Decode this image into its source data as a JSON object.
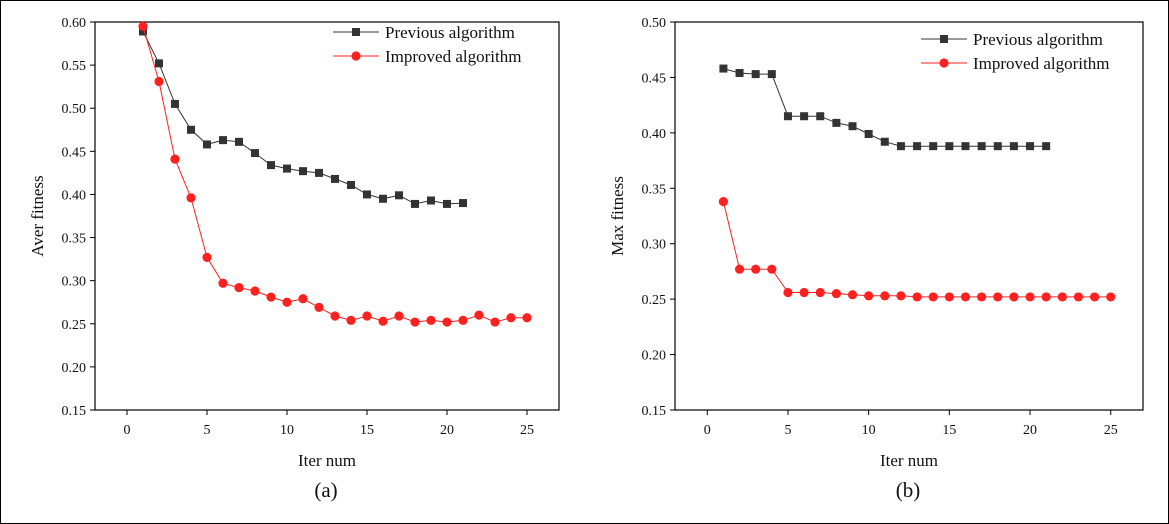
{
  "panels": [
    {
      "caption": "(a)",
      "chart_data": {
        "type": "line",
        "xlabel": "Iter num",
        "ylabel": "Aver fitness",
        "xlim": [
          -2,
          27
        ],
        "ylim": [
          0.15,
          0.6
        ],
        "xticks": [
          "0",
          "5",
          "10",
          "15",
          "20",
          "25"
        ],
        "xtick_values": [
          0,
          5,
          10,
          15,
          20,
          25
        ],
        "yticks": [
          "0.15",
          "0.20",
          "0.25",
          "0.30",
          "0.35",
          "0.40",
          "0.45",
          "0.50",
          "0.55",
          "0.60"
        ],
        "ytick_values": [
          0.15,
          0.2,
          0.25,
          0.3,
          0.35,
          0.4,
          0.45,
          0.5,
          0.55,
          0.6
        ],
        "grid": false,
        "legend_position": "top-right",
        "series": [
          {
            "name": "Previous algorithm",
            "color": "#333333",
            "marker": "square",
            "x": [
              1,
              2,
              3,
              4,
              5,
              6,
              7,
              8,
              9,
              10,
              11,
              12,
              13,
              14,
              15,
              16,
              17,
              18,
              19,
              20,
              21
            ],
            "y": [
              0.589,
              0.552,
              0.505,
              0.475,
              0.458,
              0.463,
              0.461,
              0.448,
              0.434,
              0.43,
              0.427,
              0.425,
              0.418,
              0.411,
              0.4,
              0.395,
              0.399,
              0.389,
              0.393,
              0.389,
              0.39
            ]
          },
          {
            "name": "Improved algorithm",
            "color": "#ff2020",
            "marker": "circle",
            "x": [
              1,
              2,
              3,
              4,
              5,
              6,
              7,
              8,
              9,
              10,
              11,
              12,
              13,
              14,
              15,
              16,
              17,
              18,
              19,
              20,
              21,
              22,
              23,
              24,
              25
            ],
            "y": [
              0.595,
              0.531,
              0.441,
              0.396,
              0.327,
              0.297,
              0.292,
              0.288,
              0.281,
              0.275,
              0.279,
              0.269,
              0.259,
              0.254,
              0.259,
              0.253,
              0.259,
              0.252,
              0.254,
              0.252,
              0.254,
              0.26,
              0.252,
              0.257,
              0.257
            ]
          }
        ]
      }
    },
    {
      "caption": "(b)",
      "chart_data": {
        "type": "line",
        "xlabel": "Iter num",
        "ylabel": "Max fitness",
        "xlim": [
          -2,
          27
        ],
        "ylim": [
          0.15,
          0.5
        ],
        "xticks": [
          "0",
          "5",
          "10",
          "15",
          "20",
          "25"
        ],
        "xtick_values": [
          0,
          5,
          10,
          15,
          20,
          25
        ],
        "yticks": [
          "0.15",
          "0.20",
          "0.25",
          "0.30",
          "0.35",
          "0.40",
          "0.45",
          "0.50"
        ],
        "ytick_values": [
          0.15,
          0.2,
          0.25,
          0.3,
          0.35,
          0.4,
          0.45,
          0.5
        ],
        "grid": false,
        "legend_position": "top-right",
        "series": [
          {
            "name": "Previous algorithm",
            "color": "#333333",
            "marker": "square",
            "x": [
              1,
              2,
              3,
              4,
              5,
              6,
              7,
              8,
              9,
              10,
              11,
              12,
              13,
              14,
              15,
              16,
              17,
              18,
              19,
              20,
              21
            ],
            "y": [
              0.458,
              0.454,
              0.453,
              0.453,
              0.415,
              0.415,
              0.415,
              0.409,
              0.406,
              0.399,
              0.392,
              0.388,
              0.388,
              0.388,
              0.388,
              0.388,
              0.388,
              0.388,
              0.388,
              0.388,
              0.388
            ]
          },
          {
            "name": "Improved algorithm",
            "color": "#ff2020",
            "marker": "circle",
            "x": [
              1,
              2,
              3,
              4,
              5,
              6,
              7,
              8,
              9,
              10,
              11,
              12,
              13,
              14,
              15,
              16,
              17,
              18,
              19,
              20,
              21,
              22,
              23,
              24,
              25
            ],
            "y": [
              0.338,
              0.277,
              0.277,
              0.277,
              0.256,
              0.256,
              0.256,
              0.255,
              0.254,
              0.253,
              0.253,
              0.253,
              0.252,
              0.252,
              0.252,
              0.252,
              0.252,
              0.252,
              0.252,
              0.252,
              0.252,
              0.252,
              0.252,
              0.252,
              0.252
            ]
          }
        ]
      }
    }
  ]
}
